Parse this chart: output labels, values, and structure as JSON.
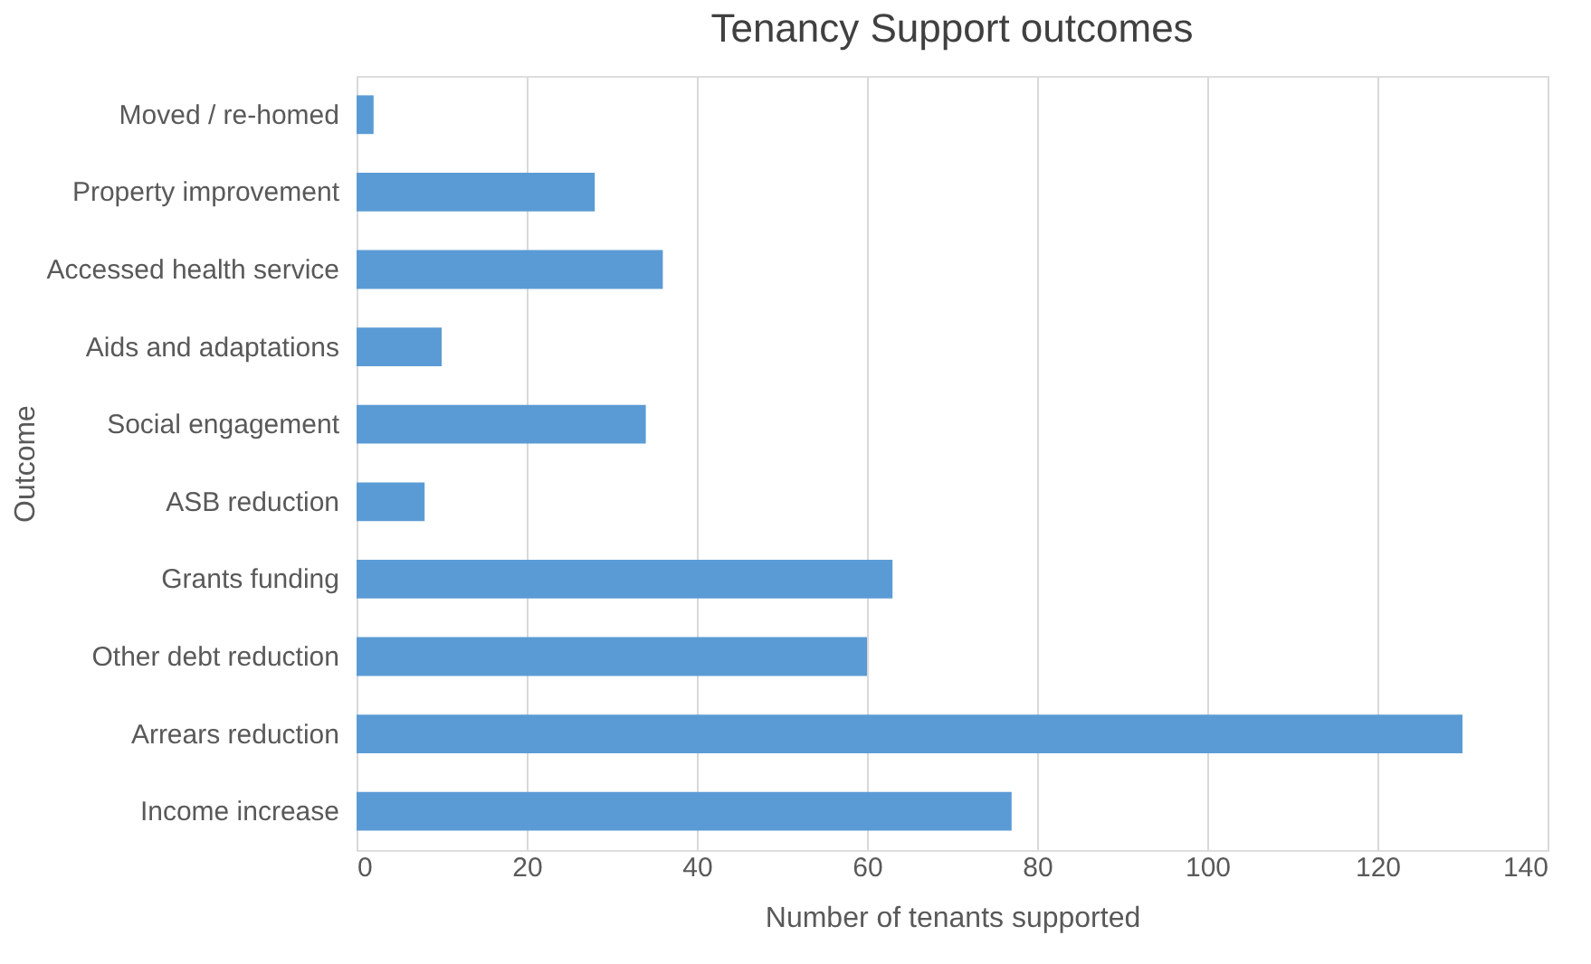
{
  "chart_data": {
    "type": "bar",
    "orientation": "horizontal",
    "title": "Tenancy Support outcomes",
    "xlabel": "Number of tenants supported",
    "ylabel": "Outcome",
    "categories": [
      "Moved / re-homed",
      "Property improvement",
      "Accessed health service",
      "Aids and adaptations",
      "Social engagement",
      "ASB reduction",
      "Grants funding",
      "Other debt reduction",
      "Arrears reduction",
      "Income increase"
    ],
    "values": [
      2,
      28,
      36,
      10,
      34,
      8,
      63,
      60,
      130,
      77
    ],
    "color": "#5b9bd5",
    "xlim": [
      0,
      140
    ],
    "xticks": [
      0,
      20,
      40,
      60,
      80,
      100,
      120,
      140
    ],
    "grid": "x"
  }
}
